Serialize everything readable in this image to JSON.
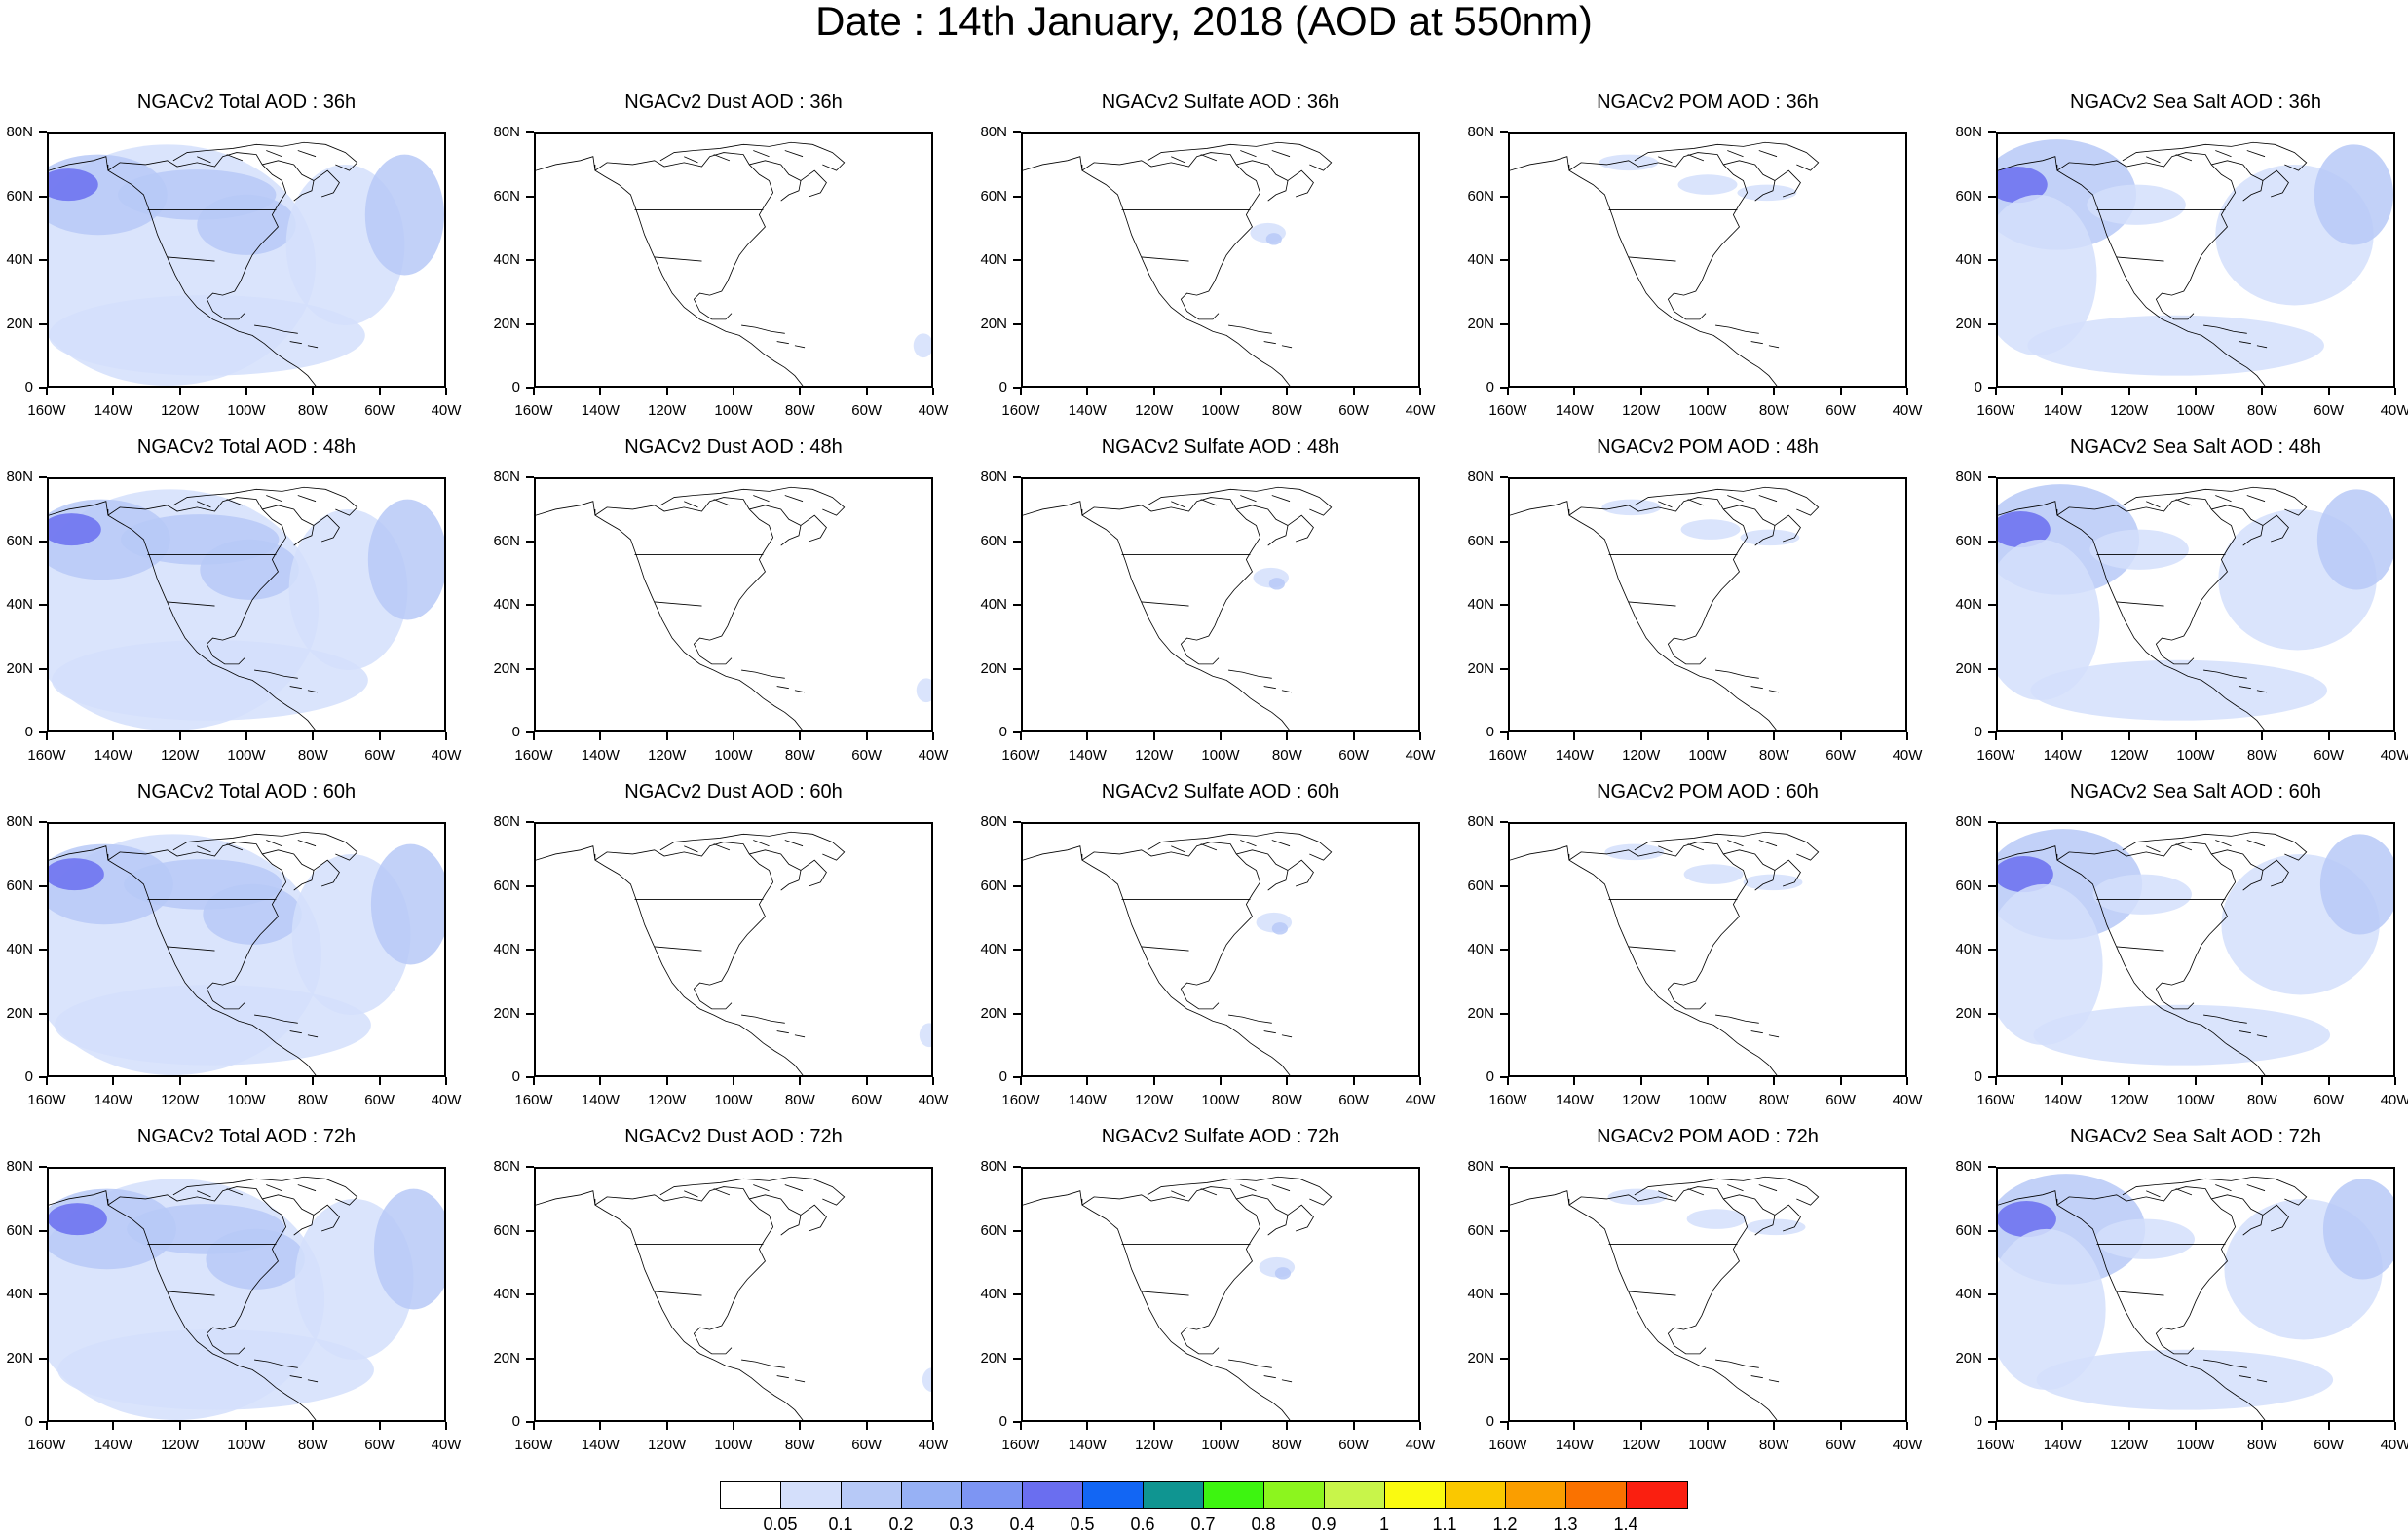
{
  "title": "Date : 14th January, 2018 (AOD at 550nm)",
  "lat_ticks": [
    "80N",
    "60N",
    "40N",
    "20N",
    "0"
  ],
  "lon_ticks": [
    "160W",
    "140W",
    "120W",
    "100W",
    "80W",
    "60W",
    "40W"
  ],
  "panels": [
    [
      {
        "title": "NGACv2 Total AOD : 36h",
        "field": "total"
      },
      {
        "title": "NGACv2 Dust AOD : 36h",
        "field": "dust"
      },
      {
        "title": "NGACv2 Sulfate AOD : 36h",
        "field": "sulfate"
      },
      {
        "title": "NGACv2 POM AOD : 36h",
        "field": "pom"
      },
      {
        "title": "NGACv2 Sea Salt AOD : 36h",
        "field": "seasalt"
      }
    ],
    [
      {
        "title": "NGACv2 Total AOD : 48h",
        "field": "total"
      },
      {
        "title": "NGACv2 Dust AOD : 48h",
        "field": "dust"
      },
      {
        "title": "NGACv2 Sulfate AOD : 48h",
        "field": "sulfate"
      },
      {
        "title": "NGACv2 POM AOD : 48h",
        "field": "pom"
      },
      {
        "title": "NGACv2 Sea Salt AOD : 48h",
        "field": "seasalt"
      }
    ],
    [
      {
        "title": "NGACv2 Total AOD : 60h",
        "field": "total"
      },
      {
        "title": "NGACv2 Dust AOD : 60h",
        "field": "dust"
      },
      {
        "title": "NGACv2 Sulfate AOD : 60h",
        "field": "sulfate"
      },
      {
        "title": "NGACv2 POM AOD : 60h",
        "field": "pom"
      },
      {
        "title": "NGACv2 Sea Salt AOD : 60h",
        "field": "seasalt"
      }
    ],
    [
      {
        "title": "NGACv2 Total AOD : 72h",
        "field": "total"
      },
      {
        "title": "NGACv2 Dust AOD : 72h",
        "field": "dust"
      },
      {
        "title": "NGACv2 Sulfate AOD : 72h",
        "field": "sulfate"
      },
      {
        "title": "NGACv2 POM AOD : 72h",
        "field": "pom"
      },
      {
        "title": "NGACv2 Sea Salt  AOD : 72h",
        "field": "seasalt"
      }
    ]
  ],
  "colorbar": {
    "colors": [
      "#ffffff",
      "#d4dffb",
      "#b7c9f7",
      "#97b1f5",
      "#7d95f3",
      "#6a6ef0",
      "#1266f4",
      "#0f9591",
      "#3df510",
      "#8cf51e",
      "#c8f54a",
      "#fafa10",
      "#fac800",
      "#fa9e00",
      "#fa7200",
      "#fa1f10"
    ],
    "labels": [
      "0.05",
      "0.1",
      "0.2",
      "0.3",
      "0.4",
      "0.5",
      "0.6",
      "0.7",
      "0.8",
      "0.9",
      "1",
      "1.1",
      "1.2",
      "1.3",
      "1.4"
    ]
  }
}
